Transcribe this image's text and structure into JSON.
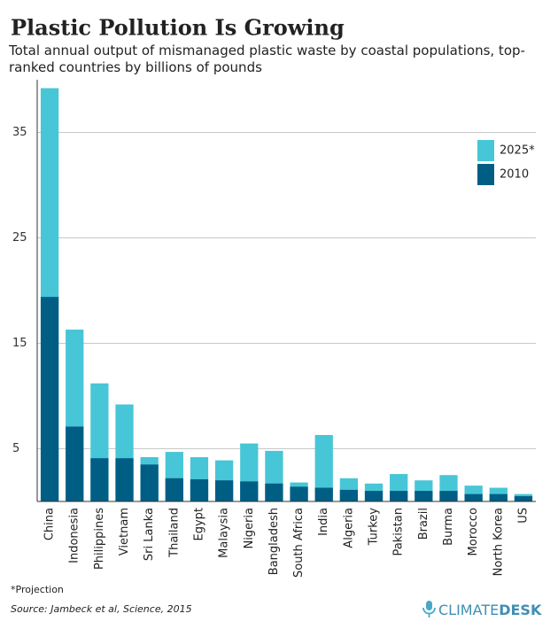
{
  "chart_data": {
    "type": "bar",
    "title": "Plastic Pollution Is Growing",
    "subtitle": "Total annual output of mismanaged plastic waste by coastal populations, top-ranked countries by billions of pounds",
    "categories": [
      "China",
      "Indonesia",
      "Philippines",
      "Vietnam",
      "Sri Lanka",
      "Thailand",
      "Egypt",
      "Malaysia",
      "Nigeria",
      "Bangladesh",
      "South Africa",
      "India",
      "Algeria",
      "Turkey",
      "Pakistan",
      "Brazil",
      "Burma",
      "Morocco",
      "North Korea",
      "US"
    ],
    "series": [
      {
        "name": "2025*",
        "color": "#47c6d7",
        "values": [
          39.2,
          16.3,
          11.2,
          9.2,
          4.2,
          4.7,
          4.2,
          3.9,
          5.5,
          4.8,
          1.8,
          6.3,
          2.2,
          1.7,
          2.6,
          2.0,
          2.5,
          1.5,
          1.3,
          0.7
        ]
      },
      {
        "name": "2010",
        "color": "#005e85",
        "values": [
          19.4,
          7.1,
          4.1,
          4.1,
          3.5,
          2.2,
          2.1,
          2.0,
          1.9,
          1.7,
          1.4,
          1.3,
          1.1,
          1.0,
          1.0,
          1.0,
          1.0,
          0.7,
          0.7,
          0.5
        ]
      }
    ],
    "ylim": [
      0,
      40
    ],
    "yticks": [
      5,
      15,
      25,
      35
    ],
    "grid": true,
    "legend": "top-right",
    "footnote": "*Projection",
    "source": "Source: Jambeck et al, Science, 2015",
    "logo": [
      "CLIMATE",
      "DESK"
    ]
  }
}
